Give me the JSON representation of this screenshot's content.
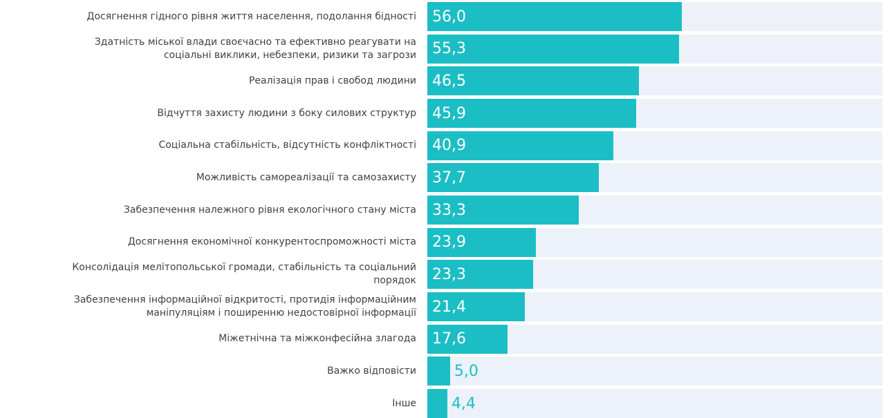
{
  "chart_data": {
    "type": "barh",
    "categories": [
      "Досягнення гідного рівня життя населення, подолання бідності",
      "Здатність міської влади своєчасно та ефективно реагувати на\nсоціальні виклики, небезпеки, ризики та загрози",
      "Реалізація прав і свобод людини",
      "Відчуття захисту людини з боку силових структур",
      "Соціальна стабільність, відсутність конфліктності",
      "Можливість самореалізації та самозахисту",
      "Забезпечення належного рівня екологічного стану міста",
      "Досягнення економічної конкурентоспроможності міста",
      "Консолідація мелітопольської громади, стабільність та соціальний\nпорядок",
      "Забезпечення інформаційної відкритості, протидія інформаційним\nманіпуляціям і поширенню недостовірної інформації",
      "Міжетнічна та міжконфесійна злагода",
      "Важко відповісти",
      "Інше"
    ],
    "values": [
      56.0,
      55.3,
      46.5,
      45.9,
      40.9,
      37.7,
      33.3,
      23.9,
      23.3,
      21.4,
      17.6,
      5.0,
      4.4
    ],
    "value_labels": [
      "56,0",
      "55,3",
      "46,5",
      "45,9",
      "40,9",
      "37,7",
      "33,3",
      "23,9",
      "23,3",
      "21,4",
      "17,6",
      "5,0",
      "4,4"
    ],
    "color": "#1bbec4",
    "xlim": [
      0,
      100
    ]
  }
}
